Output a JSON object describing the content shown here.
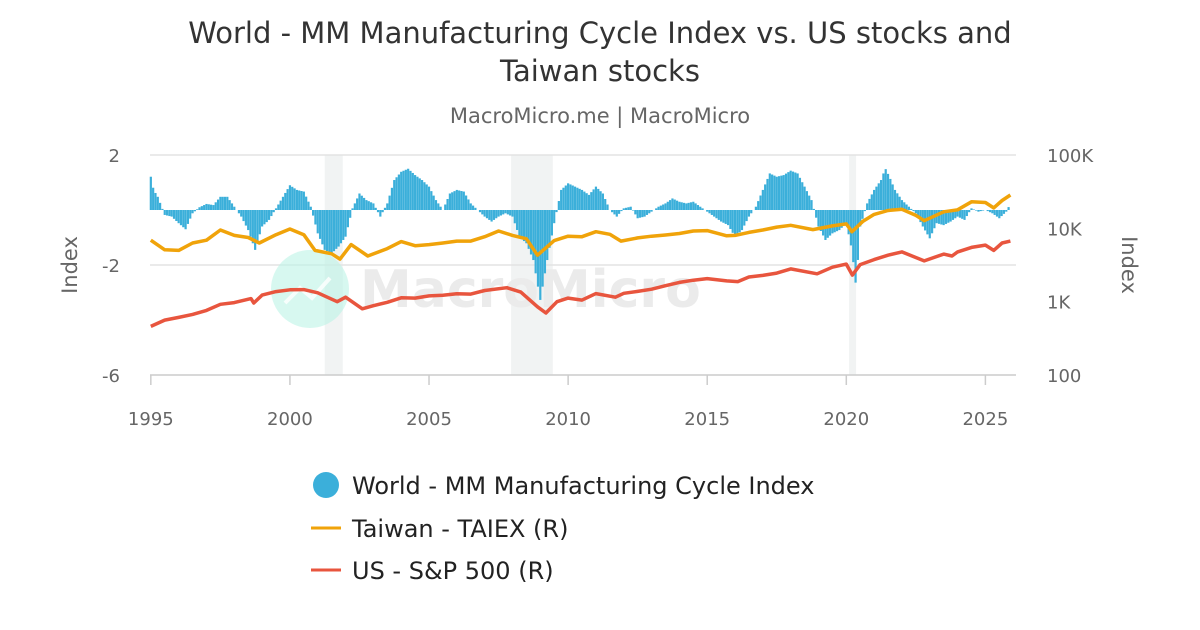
{
  "chart_data": {
    "type": "bar+line",
    "title_line1": "World - MM Manufacturing Cycle Index vs. US stocks and",
    "title_line2": "Taiwan stocks",
    "subtitle": "MacroMicro.me | MacroMicro",
    "watermark": "MacroMicro",
    "x_ticks": [
      "1995",
      "2000",
      "2005",
      "2010",
      "2015",
      "2020",
      "2025"
    ],
    "xlim": [
      1994.97,
      2026.1
    ],
    "left_axis": {
      "label": "Index",
      "ticks": [
        "2",
        "-2",
        "-6"
      ],
      "tick_values": [
        2,
        -2,
        -6
      ],
      "ylim": [
        -6,
        2
      ]
    },
    "right_axis": {
      "label": "Index",
      "scale": "log",
      "ticks": [
        "100K",
        "10K",
        "1K",
        "100"
      ],
      "tick_values": [
        100000,
        10000,
        1000,
        100
      ],
      "ylim": [
        100,
        100000
      ]
    },
    "grid": true,
    "legend_position": "bottom",
    "recessions": [
      [
        2001.25,
        2001.9
      ],
      [
        2007.95,
        2009.45
      ],
      [
        2020.1,
        2020.35
      ]
    ],
    "series": [
      {
        "name": "World - MM Manufacturing Cycle Index",
        "kind": "bar",
        "axis": "left",
        "color": "#3BAFDA",
        "points": [
          [
            1995,
            1.21
          ],
          [
            1995.1,
            0.73
          ],
          [
            1995.25,
            0.48
          ],
          [
            1995.5,
            -0.18
          ],
          [
            1995.75,
            -0.24
          ],
          [
            1996,
            -0.48
          ],
          [
            1996.25,
            -0.7
          ],
          [
            1996.5,
            -0.12
          ],
          [
            1996.75,
            0.1
          ],
          [
            1997,
            0.22
          ],
          [
            1997.25,
            0.18
          ],
          [
            1997.5,
            0.48
          ],
          [
            1997.75,
            0.48
          ],
          [
            1998,
            0.12
          ],
          [
            1998.25,
            -0.24
          ],
          [
            1998.5,
            -0.73
          ],
          [
            1998.75,
            -1.45
          ],
          [
            1999,
            -0.6
          ],
          [
            1999.25,
            -0.36
          ],
          [
            1999.5,
            0.06
          ],
          [
            1999.75,
            0.48
          ],
          [
            2000,
            0.9
          ],
          [
            2000.25,
            0.73
          ],
          [
            2000.5,
            0.67
          ],
          [
            2000.75,
            0.12
          ],
          [
            2001,
            -0.85
          ],
          [
            2001.25,
            -1.45
          ],
          [
            2001.5,
            -1.58
          ],
          [
            2001.75,
            -1.33
          ],
          [
            2002,
            -0.97
          ],
          [
            2002.25,
            0.06
          ],
          [
            2002.5,
            0.6
          ],
          [
            2002.75,
            0.36
          ],
          [
            2003,
            0.24
          ],
          [
            2003.25,
            -0.24
          ],
          [
            2003.5,
            0.24
          ],
          [
            2003.75,
            1.09
          ],
          [
            2004,
            1.39
          ],
          [
            2004.25,
            1.5
          ],
          [
            2004.5,
            1.27
          ],
          [
            2004.75,
            1.09
          ],
          [
            2005,
            0.85
          ],
          [
            2005.25,
            0.36
          ],
          [
            2005.5,
            0
          ],
          [
            2005.75,
            0.6
          ],
          [
            2006,
            0.73
          ],
          [
            2006.25,
            0.67
          ],
          [
            2006.5,
            0.24
          ],
          [
            2006.75,
            0
          ],
          [
            2007,
            -0.24
          ],
          [
            2007.25,
            -0.42
          ],
          [
            2007.5,
            -0.24
          ],
          [
            2007.75,
            -0.12
          ],
          [
            2008,
            -0.24
          ],
          [
            2008.25,
            -0.97
          ],
          [
            2008.5,
            -1.21
          ],
          [
            2008.75,
            -1.82
          ],
          [
            2009,
            -3.27
          ],
          [
            2009.25,
            -1.82
          ],
          [
            2009.5,
            -0.48
          ],
          [
            2009.75,
            0.73
          ],
          [
            2010,
            0.97
          ],
          [
            2010.25,
            0.85
          ],
          [
            2010.5,
            0.73
          ],
          [
            2010.75,
            0.55
          ],
          [
            2011,
            0.85
          ],
          [
            2011.25,
            0.6
          ],
          [
            2011.5,
            0
          ],
          [
            2011.75,
            -0.24
          ],
          [
            2012,
            0.06
          ],
          [
            2012.25,
            0.12
          ],
          [
            2012.5,
            -0.3
          ],
          [
            2012.75,
            -0.24
          ],
          [
            2013,
            -0.06
          ],
          [
            2013.25,
            0.12
          ],
          [
            2013.5,
            0.24
          ],
          [
            2013.75,
            0.42
          ],
          [
            2014,
            0.3
          ],
          [
            2014.25,
            0.24
          ],
          [
            2014.5,
            0.3
          ],
          [
            2014.75,
            0.12
          ],
          [
            2015,
            -0.06
          ],
          [
            2015.25,
            -0.24
          ],
          [
            2015.5,
            -0.42
          ],
          [
            2015.75,
            -0.55
          ],
          [
            2016,
            -0.97
          ],
          [
            2016.25,
            -0.73
          ],
          [
            2016.5,
            -0.24
          ],
          [
            2016.75,
            0.12
          ],
          [
            2017,
            0.73
          ],
          [
            2017.25,
            1.33
          ],
          [
            2017.5,
            1.21
          ],
          [
            2017.75,
            1.27
          ],
          [
            2018,
            1.43
          ],
          [
            2018.25,
            1.33
          ],
          [
            2018.5,
            0.85
          ],
          [
            2018.75,
            0.36
          ],
          [
            2019,
            -0.6
          ],
          [
            2019.25,
            -1.09
          ],
          [
            2019.5,
            -0.85
          ],
          [
            2019.75,
            -0.73
          ],
          [
            2020,
            -0.48
          ],
          [
            2020.2,
            -1.45
          ],
          [
            2020.35,
            -2.79
          ],
          [
            2020.5,
            -0.6
          ],
          [
            2020.75,
            0.24
          ],
          [
            2021,
            0.73
          ],
          [
            2021.25,
            1.09
          ],
          [
            2021.4,
            1.52
          ],
          [
            2021.55,
            1.21
          ],
          [
            2021.75,
            0.73
          ],
          [
            2022,
            0.36
          ],
          [
            2022.25,
            0.12
          ],
          [
            2022.5,
            -0.12
          ],
          [
            2022.75,
            -0.6
          ],
          [
            2023,
            -1.03
          ],
          [
            2023.25,
            -0.48
          ],
          [
            2023.5,
            -0.55
          ],
          [
            2023.75,
            -0.42
          ],
          [
            2024,
            -0.24
          ],
          [
            2024.25,
            -0.36
          ],
          [
            2024.5,
            0.06
          ],
          [
            2024.75,
            -0.06
          ],
          [
            2025,
            0
          ],
          [
            2025.25,
            -0.12
          ],
          [
            2025.5,
            -0.3
          ],
          [
            2025.75,
            -0.06
          ],
          [
            2025.9,
            0.24
          ]
        ]
      },
      {
        "name": "Taiwan - TAIEX (R)",
        "kind": "line",
        "axis": "right",
        "color": "#F0A30A",
        "points": [
          [
            1995,
            6900
          ],
          [
            1995.5,
            5100
          ],
          [
            1996,
            5000
          ],
          [
            1996.5,
            6300
          ],
          [
            1997,
            6900
          ],
          [
            1997.5,
            9500
          ],
          [
            1998,
            8000
          ],
          [
            1998.5,
            7500
          ],
          [
            1998.9,
            6300
          ],
          [
            1999.5,
            8200
          ],
          [
            2000,
            9800
          ],
          [
            2000.5,
            8200
          ],
          [
            2000.9,
            5000
          ],
          [
            2001.5,
            4500
          ],
          [
            2001.8,
            3800
          ],
          [
            2002.2,
            6000
          ],
          [
            2002.8,
            4200
          ],
          [
            2003.5,
            5300
          ],
          [
            2004,
            6600
          ],
          [
            2004.5,
            5800
          ],
          [
            2005,
            6000
          ],
          [
            2005.5,
            6300
          ],
          [
            2006,
            6700
          ],
          [
            2006.5,
            6700
          ],
          [
            2007,
            7700
          ],
          [
            2007.5,
            9200
          ],
          [
            2008,
            8000
          ],
          [
            2008.5,
            7200
          ],
          [
            2008.9,
            4300
          ],
          [
            2009.5,
            6800
          ],
          [
            2010,
            7800
          ],
          [
            2010.5,
            7700
          ],
          [
            2011,
            9000
          ],
          [
            2011.5,
            8300
          ],
          [
            2011.9,
            6700
          ],
          [
            2012.5,
            7400
          ],
          [
            2013,
            7800
          ],
          [
            2013.5,
            8100
          ],
          [
            2014,
            8500
          ],
          [
            2014.5,
            9200
          ],
          [
            2015,
            9300
          ],
          [
            2015.7,
            7900
          ],
          [
            2016,
            8000
          ],
          [
            2016.5,
            8800
          ],
          [
            2017,
            9500
          ],
          [
            2017.5,
            10400
          ],
          [
            2018,
            11000
          ],
          [
            2018.8,
            9600
          ],
          [
            2019.5,
            10800
          ],
          [
            2020,
            11500
          ],
          [
            2020.2,
            9000
          ],
          [
            2020.6,
            12500
          ],
          [
            2021,
            15500
          ],
          [
            2021.5,
            17500
          ],
          [
            2022,
            18200
          ],
          [
            2022.5,
            15000
          ],
          [
            2022.8,
            12700
          ],
          [
            2023.5,
            16800
          ],
          [
            2024,
            17900
          ],
          [
            2024.5,
            23000
          ],
          [
            2025,
            22500
          ],
          [
            2025.3,
            19000
          ],
          [
            2025.6,
            24000
          ],
          [
            2025.9,
            28500
          ]
        ]
      },
      {
        "name": "US - S&P 500 (R)",
        "kind": "line",
        "axis": "right",
        "color": "#E8553E",
        "points": [
          [
            1995,
            460
          ],
          [
            1995.5,
            560
          ],
          [
            1996,
            610
          ],
          [
            1996.5,
            670
          ],
          [
            1997,
            760
          ],
          [
            1997.5,
            920
          ],
          [
            1998,
            970
          ],
          [
            1998.6,
            1100
          ],
          [
            1998.7,
            960
          ],
          [
            1999,
            1230
          ],
          [
            1999.5,
            1370
          ],
          [
            2000,
            1450
          ],
          [
            2000.5,
            1460
          ],
          [
            2001,
            1320
          ],
          [
            2001.7,
            1000
          ],
          [
            2002,
            1150
          ],
          [
            2002.6,
            800
          ],
          [
            2003,
            880
          ],
          [
            2003.5,
            980
          ],
          [
            2004,
            1130
          ],
          [
            2004.5,
            1120
          ],
          [
            2005,
            1200
          ],
          [
            2005.5,
            1220
          ],
          [
            2006,
            1280
          ],
          [
            2006.5,
            1270
          ],
          [
            2007,
            1420
          ],
          [
            2007.8,
            1550
          ],
          [
            2008.3,
            1350
          ],
          [
            2008.9,
            850
          ],
          [
            2009.2,
            700
          ],
          [
            2009.6,
            1000
          ],
          [
            2010,
            1120
          ],
          [
            2010.5,
            1050
          ],
          [
            2011,
            1290
          ],
          [
            2011.7,
            1150
          ],
          [
            2012,
            1300
          ],
          [
            2012.5,
            1380
          ],
          [
            2013,
            1480
          ],
          [
            2013.5,
            1650
          ],
          [
            2014,
            1830
          ],
          [
            2014.5,
            1960
          ],
          [
            2015,
            2060
          ],
          [
            2015.7,
            1920
          ],
          [
            2016.1,
            1880
          ],
          [
            2016.5,
            2170
          ],
          [
            2017,
            2280
          ],
          [
            2017.5,
            2450
          ],
          [
            2018,
            2800
          ],
          [
            2018.95,
            2400
          ],
          [
            2019.5,
            2950
          ],
          [
            2020,
            3250
          ],
          [
            2020.22,
            2300
          ],
          [
            2020.5,
            3200
          ],
          [
            2021,
            3750
          ],
          [
            2021.5,
            4300
          ],
          [
            2022,
            4770
          ],
          [
            2022.8,
            3600
          ],
          [
            2023.5,
            4450
          ],
          [
            2023.8,
            4200
          ],
          [
            2024,
            4770
          ],
          [
            2024.5,
            5500
          ],
          [
            2025,
            5900
          ],
          [
            2025.3,
            5000
          ],
          [
            2025.6,
            6300
          ],
          [
            2025.9,
            6700
          ]
        ]
      }
    ]
  }
}
